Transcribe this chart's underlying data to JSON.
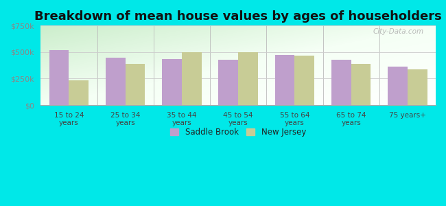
{
  "title": "Breakdown of mean house values by ages of householders",
  "categories": [
    "15 to 24\nyears",
    "25 to 34\nyears",
    "35 to 44\nyears",
    "45 to 54\nyears",
    "55 to 64\nyears",
    "65 to 74\nyears",
    "75 years+"
  ],
  "saddle_brook": [
    520000,
    450000,
    435000,
    425000,
    475000,
    425000,
    360000
  ],
  "new_jersey": [
    235000,
    390000,
    500000,
    500000,
    470000,
    390000,
    340000
  ],
  "saddle_brook_color": "#bf9fcc",
  "new_jersey_color": "#c8cc96",
  "ylim": [
    0,
    750000
  ],
  "yticks": [
    0,
    250000,
    500000,
    750000
  ],
  "ytick_labels": [
    "$0",
    "$250k",
    "$500k",
    "$750k"
  ],
  "outer_background": "#00e8e8",
  "legend_saddle_brook": "Saddle Brook",
  "legend_new_jersey": "New Jersey",
  "bar_width": 0.35,
  "title_fontsize": 13,
  "watermark": "City-Data.com"
}
